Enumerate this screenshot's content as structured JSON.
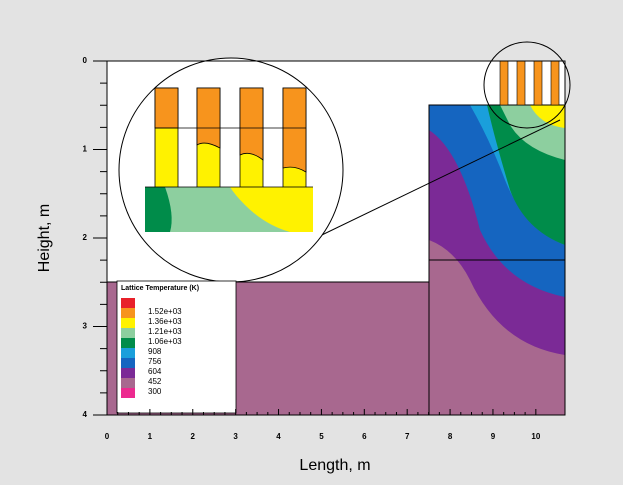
{
  "chart_data": {
    "type": "contour",
    "xlabel": "Length,   m",
    "ylabel": "Height,   m",
    "xlim": [
      0,
      10.68
    ],
    "ylim": [
      0,
      4
    ],
    "y_inverted": true,
    "xticks": [
      0,
      1,
      2,
      3,
      4,
      5,
      6,
      7,
      8,
      9,
      10
    ],
    "yticks": [
      0,
      1,
      2,
      3,
      4
    ],
    "legend": {
      "title": "Lattice Temperature (K)",
      "colors": [
        "#e8202a",
        "#f7941d",
        "#fff200",
        "#8dcf9f",
        "#008c4a",
        "#1a9fdb",
        "#1565c0",
        "#7b2a96",
        "#a8688f",
        "#ec2a8f"
      ],
      "levels": [
        null,
        {
          "value": 1520,
          "label": "1.52e+03"
        },
        {
          "value": 1360,
          "label": "1.36e+03"
        },
        {
          "value": 1210,
          "label": "1.21e+03"
        },
        {
          "value": 1060,
          "label": "1.06e+03"
        },
        908,
        756,
        604,
        452,
        300
      ]
    }
  }
}
